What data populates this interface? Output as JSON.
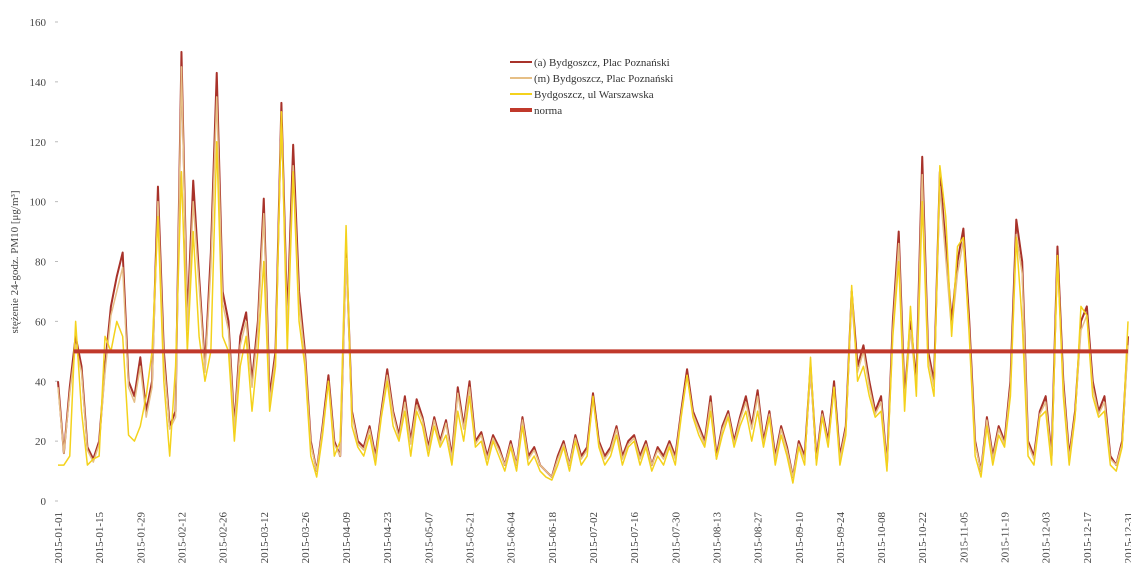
{
  "chart_data": {
    "type": "line",
    "y_label": "stężenie 24-godz. PM10 [μg/m³]",
    "ylim": [
      0,
      160
    ],
    "yticks": [
      0,
      20,
      40,
      60,
      80,
      100,
      120,
      140,
      160
    ],
    "grid": false,
    "legend": "top",
    "categories": [
      "2015-01-01",
      null,
      null,
      null,
      null,
      null,
      null,
      "2015-01-15",
      null,
      null,
      null,
      null,
      null,
      null,
      "2015-01-29",
      null,
      null,
      null,
      null,
      null,
      null,
      "2015-02-12",
      null,
      null,
      null,
      null,
      null,
      null,
      "2015-02-26",
      null,
      null,
      null,
      null,
      null,
      null,
      "2015-03-12",
      null,
      null,
      null,
      null,
      null,
      null,
      "2015-03-26",
      null,
      null,
      null,
      null,
      null,
      null,
      "2015-04-09",
      null,
      null,
      null,
      null,
      null,
      null,
      "2015-04-23",
      null,
      null,
      null,
      null,
      null,
      null,
      "2015-05-07",
      null,
      null,
      null,
      null,
      null,
      null,
      "2015-05-21",
      null,
      null,
      null,
      null,
      null,
      null,
      "2015-06-04",
      null,
      null,
      null,
      null,
      null,
      null,
      "2015-06-18",
      null,
      null,
      null,
      null,
      null,
      null,
      "2015-07-02",
      null,
      null,
      null,
      null,
      null,
      null,
      "2015-07-16",
      null,
      null,
      null,
      null,
      null,
      null,
      "2015-07-30",
      null,
      null,
      null,
      null,
      null,
      null,
      "2015-08-13",
      null,
      null,
      null,
      null,
      null,
      null,
      "2015-08-27",
      null,
      null,
      null,
      null,
      null,
      null,
      "2015-09-10",
      null,
      null,
      null,
      null,
      null,
      null,
      "2015-09-24",
      null,
      null,
      null,
      null,
      null,
      null,
      "2015-10-08",
      null,
      null,
      null,
      null,
      null,
      null,
      "2015-10-22",
      null,
      null,
      null,
      null,
      null,
      null,
      "2015-11-05",
      null,
      null,
      null,
      null,
      null,
      null,
      "2015-11-19",
      null,
      null,
      null,
      null,
      null,
      null,
      "2015-12-03",
      null,
      null,
      null,
      null,
      null,
      null,
      "2015-12-17",
      null,
      null,
      null,
      null,
      null,
      null,
      "2015-12-31"
    ],
    "series": [
      {
        "name": "(a) Bydgoszcz, Plac Poznański",
        "color": "#a8322a",
        "values": [
          40,
          16,
          38,
          55,
          45,
          18,
          14,
          20,
          45,
          65,
          75,
          83,
          40,
          35,
          48,
          30,
          40,
          105,
          50,
          25,
          30,
          150,
          60,
          107,
          75,
          45,
          83,
          143,
          70,
          60,
          25,
          55,
          63,
          40,
          60,
          101,
          35,
          50,
          133,
          60,
          119,
          70,
          50,
          20,
          10,
          25,
          42,
          20,
          15,
          85,
          30,
          20,
          18,
          25,
          15,
          30,
          44,
          30,
          22,
          35,
          20,
          34,
          28,
          18,
          28,
          20,
          27,
          15,
          38,
          25,
          40,
          20,
          23,
          15,
          22,
          18,
          12,
          20,
          12,
          28,
          15,
          18,
          12,
          10,
          8,
          15,
          20,
          12,
          22,
          15,
          18,
          36,
          20,
          15,
          18,
          25,
          15,
          20,
          22,
          15,
          20,
          12,
          18,
          15,
          20,
          15,
          30,
          44,
          30,
          25,
          20,
          35,
          15,
          25,
          30,
          20,
          28,
          35,
          25,
          37,
          20,
          30,
          15,
          25,
          18,
          8,
          20,
          15,
          45,
          14,
          30,
          20,
          40,
          15,
          25,
          70,
          45,
          52,
          40,
          30,
          35,
          12,
          60,
          90,
          35,
          60,
          40,
          115,
          50,
          40,
          110,
          85,
          60,
          80,
          91,
          60,
          20,
          10,
          28,
          15,
          25,
          20,
          40,
          94,
          80,
          20,
          15,
          30,
          35,
          15,
          85,
          40,
          15,
          30,
          60,
          65,
          40,
          30,
          35,
          15,
          12,
          20,
          55
        ]
      },
      {
        "name": "(m) Bydgoszcz, Plac Poznański",
        "color": "#e6bf86",
        "values": [
          38,
          16,
          36,
          52,
          43,
          17,
          13,
          19,
          43,
          62,
          70,
          78,
          38,
          33,
          45,
          28,
          38,
          100,
          47,
          24,
          28,
          145,
          57,
          100,
          72,
          43,
          78,
          135,
          66,
          57,
          24,
          52,
          60,
          38,
          57,
          96,
          33,
          48,
          130,
          57,
          112,
          66,
          48,
          19,
          10,
          24,
          40,
          19,
          15,
          81,
          29,
          19,
          17,
          24,
          14,
          29,
          42,
          29,
          21,
          33,
          19,
          32,
          27,
          17,
          27,
          19,
          26,
          14,
          36,
          24,
          38,
          19,
          22,
          14,
          21,
          17,
          12,
          19,
          12,
          27,
          14,
          17,
          12,
          10,
          8,
          14,
          19,
          12,
          21,
          14,
          17,
          34,
          19,
          14,
          17,
          24,
          14,
          19,
          21,
          14,
          19,
          12,
          17,
          14,
          19,
          14,
          29,
          42,
          29,
          24,
          19,
          33,
          14,
          24,
          29,
          19,
          27,
          33,
          24,
          35,
          19,
          29,
          14,
          24,
          17,
          8,
          19,
          14,
          43,
          13,
          29,
          19,
          38,
          14,
          24,
          67,
          43,
          50,
          38,
          29,
          33,
          12,
          57,
          86,
          33,
          57,
          38,
          109,
          48,
          38,
          105,
          81,
          57,
          76,
          87,
          57,
          19,
          10,
          27,
          14,
          24,
          19,
          38,
          89,
          76,
          19,
          14,
          29,
          33,
          14,
          81,
          38,
          14,
          29,
          57,
          62,
          38,
          29,
          33,
          14,
          12,
          19,
          52
        ]
      },
      {
        "name": "Bydgoszcz, ul  Warszawska",
        "color": "#f4d21c",
        "values": [
          12,
          12,
          15,
          60,
          30,
          12,
          14,
          15,
          55,
          50,
          60,
          55,
          22,
          20,
          25,
          35,
          50,
          95,
          40,
          15,
          45,
          110,
          50,
          90,
          55,
          40,
          50,
          120,
          55,
          50,
          20,
          45,
          55,
          30,
          50,
          80,
          30,
          45,
          130,
          50,
          110,
          60,
          45,
          15,
          8,
          22,
          40,
          15,
          20,
          92,
          25,
          18,
          15,
          22,
          12,
          28,
          40,
          25,
          20,
          30,
          15,
          30,
          25,
          15,
          25,
          18,
          22,
          12,
          30,
          20,
          35,
          18,
          20,
          12,
          20,
          15,
          10,
          18,
          10,
          25,
          12,
          15,
          10,
          8,
          7,
          12,
          18,
          10,
          20,
          12,
          15,
          35,
          18,
          12,
          15,
          22,
          12,
          18,
          20,
          12,
          18,
          10,
          15,
          12,
          18,
          12,
          28,
          42,
          28,
          22,
          18,
          30,
          14,
          22,
          28,
          18,
          25,
          30,
          20,
          30,
          18,
          28,
          12,
          22,
          15,
          6,
          18,
          12,
          48,
          12,
          28,
          18,
          38,
          12,
          22,
          72,
          40,
          45,
          35,
          28,
          30,
          10,
          55,
          80,
          30,
          65,
          35,
          100,
          45,
          35,
          112,
          95,
          55,
          85,
          88,
          55,
          15,
          8,
          25,
          12,
          22,
          18,
          35,
          88,
          60,
          15,
          12,
          28,
          30,
          12,
          82,
          35,
          12,
          28,
          65,
          62,
          35,
          28,
          30,
          12,
          10,
          18,
          60
        ]
      }
    ],
    "hlines": [
      {
        "name": "norma",
        "value": 50,
        "color": "#c0392b"
      }
    ]
  }
}
